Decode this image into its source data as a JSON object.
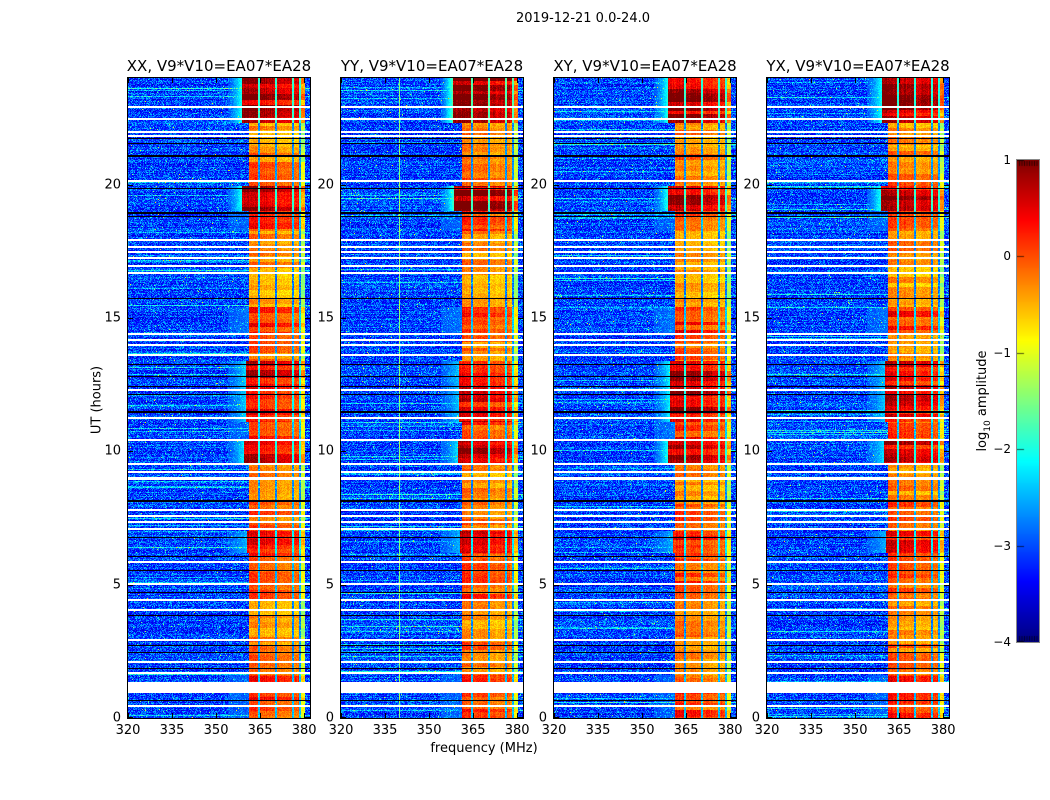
{
  "figure_title": "2019-12-21 0.0-24.0",
  "axes": {
    "x_label": "frequency (MHz)",
    "y_label": "UT (hours)",
    "x_tick_labels": [
      "320",
      "335",
      "350",
      "365",
      "380"
    ],
    "y_tick_labels": [
      "0",
      "5",
      "10",
      "15",
      "20"
    ]
  },
  "colorbar": {
    "label_prefix": "log",
    "label_sub": "10",
    "label_suffix": " amplitude",
    "ticks": [
      1,
      0,
      -1,
      -2,
      -3,
      -4
    ],
    "tick_labels": [
      "1",
      "0",
      "−1",
      "−2",
      "−3",
      "−4"
    ],
    "vmin": -4,
    "vmax": 1,
    "colormap": "jet"
  },
  "chart_data": {
    "type": "heatmap",
    "title": "2019-12-21 0.0-24.0",
    "xlabel": "frequency (MHz)",
    "ylabel": "UT (hours)",
    "x_range": [
      320,
      382
    ],
    "y_range": [
      0,
      24
    ],
    "x_ticks": [
      320,
      335,
      350,
      365,
      380
    ],
    "y_ticks": [
      0,
      5,
      10,
      15,
      20
    ],
    "value_range": [
      -4,
      1
    ],
    "panels": [
      {
        "label": "XX, V9*V10=EA07*EA28",
        "seed": 11,
        "boosts": [
          [
            9.5,
            13.4,
            1.02
          ]
        ],
        "vline_340": false
      },
      {
        "label": "YY, V9*V10=EA07*EA28",
        "seed": 22,
        "boosts": [
          [
            22.3,
            24.01,
            1.1
          ],
          [
            19.0,
            19.95,
            1.04
          ]
        ],
        "vline_340": true
      },
      {
        "label": "XY, V9*V10=EA07*EA28",
        "seed": 33,
        "boosts": [
          [
            9.5,
            13.4,
            1.08
          ]
        ],
        "vline_340": false
      },
      {
        "label": "YX, V9*V10=EA07*EA28",
        "seed": 44,
        "boosts": [
          [
            22.3,
            24.01,
            0.98
          ]
        ],
        "vline_340": false
      }
    ],
    "band": {
      "start": 361.3,
      "end": 380.3,
      "strong_end": 378.4,
      "weak_start": 378.6,
      "dividers": [
        364.5,
        370.3,
        376.1
      ],
      "edge_divider": 378.5,
      "halo_start": 354,
      "subband_factors": [
        1.07,
        1.0,
        0.92,
        0.9
      ],
      "vline_freq": 339.8
    },
    "envelope": [
      [
        0,
        1.6,
        0.72
      ],
      [
        1.6,
        3.1,
        0.6
      ],
      [
        3.1,
        4.4,
        0.55
      ],
      [
        4.4,
        6.2,
        0.7
      ],
      [
        6.2,
        7.0,
        0.85
      ],
      [
        7.0,
        8.1,
        0.65
      ],
      [
        8.1,
        9.5,
        0.55
      ],
      [
        9.5,
        10.4,
        0.92
      ],
      [
        10.4,
        11.1,
        0.7
      ],
      [
        11.1,
        13.4,
        0.88
      ],
      [
        13.4,
        14.4,
        0.6
      ],
      [
        14.4,
        15.4,
        0.75
      ],
      [
        15.4,
        17.0,
        0.5
      ],
      [
        17.0,
        18.25,
        0.55
      ],
      [
        18.25,
        19.0,
        0.72
      ],
      [
        19.0,
        19.95,
        1.0
      ],
      [
        19.95,
        21.4,
        0.6
      ],
      [
        21.4,
        22.3,
        0.55
      ],
      [
        22.3,
        24.01,
        1.0
      ]
    ],
    "white_gaps": [
      [
        22.9,
        2
      ],
      [
        22.48,
        2
      ],
      [
        21.98,
        2
      ],
      [
        21.83,
        2
      ],
      [
        20.14,
        2
      ],
      [
        17.93,
        2
      ],
      [
        17.66,
        2
      ],
      [
        17.48,
        2
      ],
      [
        17.25,
        2
      ],
      [
        16.95,
        2
      ],
      [
        16.69,
        2
      ],
      [
        14.4,
        2
      ],
      [
        14.18,
        2
      ],
      [
        13.99,
        2
      ],
      [
        13.61,
        2
      ],
      [
        12.3,
        2
      ],
      [
        11.25,
        2
      ],
      [
        10.43,
        2
      ],
      [
        9.53,
        2
      ],
      [
        9.23,
        2
      ],
      [
        9.0,
        3
      ],
      [
        7.8,
        2
      ],
      [
        7.58,
        2
      ],
      [
        7.35,
        2
      ],
      [
        7.09,
        2
      ],
      [
        5.85,
        2
      ],
      [
        5.03,
        2
      ],
      [
        4.43,
        2
      ],
      [
        4.05,
        2
      ],
      [
        2.93,
        2
      ],
      [
        2.1,
        2
      ],
      [
        1.69,
        2
      ],
      [
        1.15,
        11
      ],
      [
        0.45,
        2
      ]
    ],
    "black_lines": [
      [
        21.75,
        1
      ],
      [
        21.56,
        1
      ],
      [
        21.11,
        2
      ],
      [
        19.88,
        1
      ],
      [
        18.98,
        2
      ],
      [
        18.83,
        1
      ],
      [
        15.75,
        1
      ],
      [
        13.28,
        1
      ],
      [
        12.83,
        1
      ],
      [
        12.45,
        1
      ],
      [
        12.15,
        1
      ],
      [
        11.51,
        2
      ],
      [
        8.18,
        2
      ],
      [
        6.79,
        1
      ],
      [
        6.08,
        1
      ],
      [
        5.55,
        1
      ],
      [
        4.73,
        1
      ],
      [
        3.86,
        1
      ],
      [
        2.74,
        1
      ],
      [
        2.48,
        1
      ],
      [
        1.88,
        1
      ],
      [
        0.68,
        1
      ]
    ]
  },
  "layout_colors": {
    "background": "#ffffff",
    "axes_border": "#000000",
    "colorbar_border": "#888888"
  }
}
